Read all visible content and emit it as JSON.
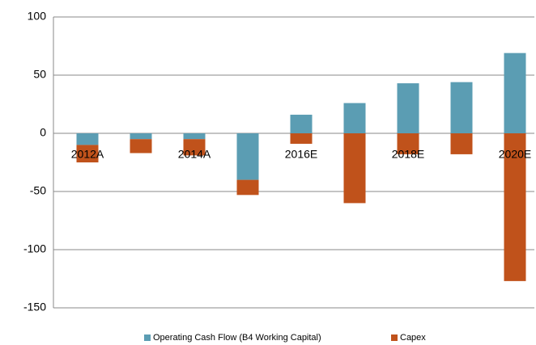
{
  "chart_data": {
    "type": "bar",
    "stacked": true,
    "categories": [
      "2012A",
      null,
      "2014A",
      null,
      "2016E",
      null,
      "2018E",
      null,
      "2020E"
    ],
    "series": [
      {
        "name": "Operating Cash Flow (B4 Working Capital)",
        "color": "#5b9db3",
        "values": [
          -10,
          -5,
          -5,
          -40,
          16,
          26,
          43,
          44,
          69
        ]
      },
      {
        "name": "Capex",
        "color": "#c0521b",
        "values": [
          -15,
          -12,
          -14,
          -13,
          -9,
          -60,
          -18,
          -18,
          -127
        ]
      }
    ],
    "ylim": [
      -150,
      100
    ],
    "yticks": [
      -150,
      -100,
      -50,
      0,
      50,
      100
    ],
    "grid": true,
    "legend": "bottom"
  }
}
